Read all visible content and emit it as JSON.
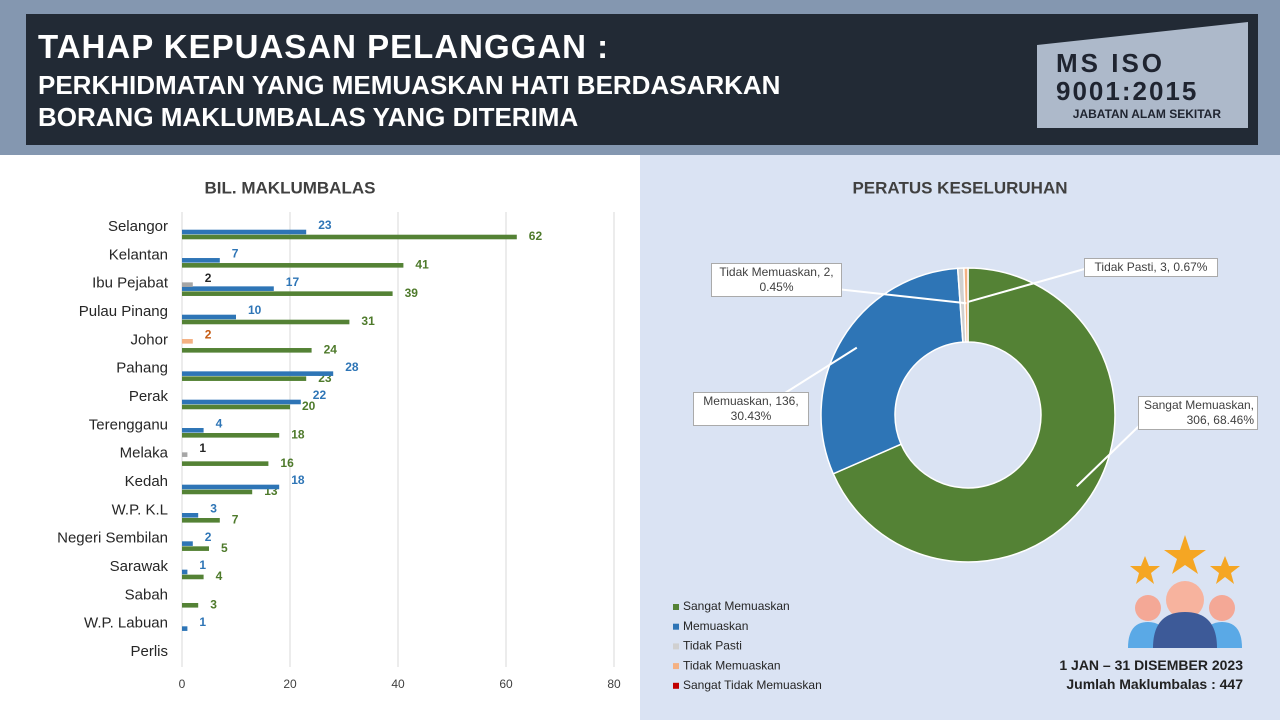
{
  "header": {
    "title": "TAHAP KEPUASAN PELANGGAN :",
    "subtitle": [
      "PERKHIDMATAN YANG MEMUASKAN HATI BERDASARKAN",
      "BORANG MAKLUMBALAS YANG DITERIMA"
    ]
  },
  "badge": {
    "lines": [
      "MS ISO",
      "9001:2015"
    ],
    "org": "JABATAN ALAM SEKITAR"
  },
  "chart_data": [
    {
      "type": "bar",
      "orientation": "horizontal",
      "title": "BIL. MAKLUMBALAS",
      "categories": [
        "Selangor",
        "Kelantan",
        "Ibu Pejabat",
        "Pulau Pinang",
        "Johor",
        "Pahang",
        "Perak",
        "Terengganu",
        "Melaka",
        "Kedah",
        "W.P. K.L",
        "Negeri Sembilan",
        "Sarawak",
        "Sabah",
        "W.P. Labuan",
        "Perlis"
      ],
      "series": [
        {
          "color": "#548235",
          "label_color": "#4e7a2b",
          "values": [
            62,
            41,
            39,
            31,
            24,
            23,
            20,
            18,
            16,
            13,
            7,
            5,
            4,
            3,
            null,
            null
          ]
        },
        {
          "color": "#2e75b6",
          "label_color": "#2e75b6",
          "values": [
            23,
            7,
            17,
            10,
            null,
            28,
            22,
            4,
            null,
            18,
            3,
            2,
            1,
            null,
            1,
            null
          ]
        },
        {
          "color": "#a6a6a6",
          "label_color": "#262626",
          "values": [
            null,
            null,
            2,
            null,
            null,
            null,
            null,
            null,
            1,
            null,
            null,
            null,
            null,
            null,
            null,
            null
          ]
        },
        {
          "color": "#f4b183",
          "label_color": "#c55a11",
          "values": [
            null,
            null,
            null,
            null,
            2,
            null,
            null,
            null,
            null,
            null,
            null,
            null,
            null,
            null,
            null,
            null
          ]
        }
      ],
      "xlim": [
        0,
        80
      ],
      "xticks": [
        0,
        20,
        40,
        60,
        80
      ],
      "grid": true
    },
    {
      "type": "donut",
      "title": "PERATUS KESELURUHAN",
      "categories": [
        "Sangat Memuaskan",
        "Memuaskan",
        "Tidak Pasti",
        "Tidak Memuaskan",
        "Sangat Tidak Memuaskan"
      ],
      "values": [
        306,
        136,
        3,
        2,
        null
      ],
      "value_labels": [
        "Sangat Memuaskan, 306, 68.46%",
        "Memuaskan, 136, 30.43%",
        "Tidak Pasti, 3, 0.67%",
        "Tidak Memuaskan, 2, 0.45%",
        null
      ],
      "colors": [
        "#548235",
        "#2e75b6",
        "#d0d0d0",
        "#f4b183",
        "#c00000"
      ]
    }
  ],
  "footer": {
    "period": "1 JAN – 31 DISEMBER 2023",
    "total": "Jumlah Maklumbalas : 447"
  }
}
